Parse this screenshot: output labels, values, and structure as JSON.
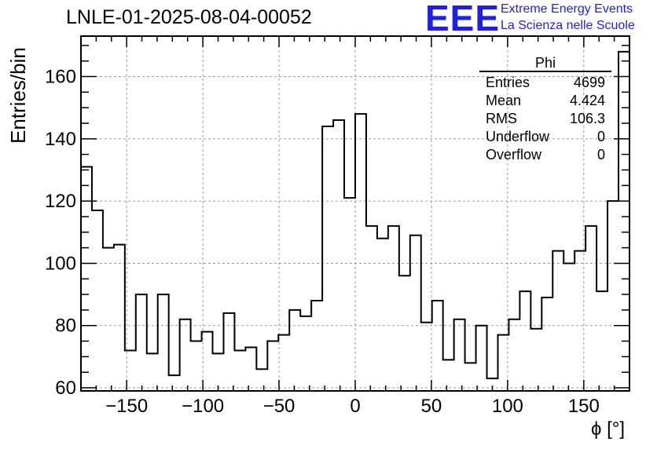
{
  "header": {
    "title": "LNLE-01-2025-08-04-00052",
    "logo_text": "EEE",
    "tagline_1": "Extreme Energy Events",
    "tagline_2": "La Scienza nelle Scuole",
    "brand_color": "#1f1fe6"
  },
  "stats_box": {
    "name": "Phi",
    "rows": [
      {
        "label": "Entries",
        "value": "4699"
      },
      {
        "label": "Mean",
        "value": "4.424"
      },
      {
        "label": "RMS",
        "value": "106.3"
      },
      {
        "label": "Underflow",
        "value": "0"
      },
      {
        "label": "Overflow",
        "value": "0"
      }
    ]
  },
  "chart_data": {
    "type": "histogram",
    "title": "LNLE-01-2025-08-04-00052",
    "xlabel": "ϕ [°]",
    "ylabel": "Entries/bin",
    "xlim": [
      -180,
      180
    ],
    "ylim": [
      59,
      173
    ],
    "bin_edges_start": -180,
    "bin_width": 7.2,
    "values": [
      131,
      117,
      105,
      106,
      72,
      90,
      71,
      90,
      64,
      82,
      75,
      78,
      71,
      84,
      72,
      73,
      66,
      75,
      77,
      85,
      83,
      88,
      144,
      146,
      121,
      148,
      112,
      108,
      112,
      96,
      109,
      81,
      88,
      69,
      82,
      68,
      80,
      63,
      77,
      82,
      91,
      79,
      89,
      104,
      100,
      104,
      112,
      91,
      120,
      168
    ],
    "xticks": [
      -150,
      -100,
      -50,
      0,
      50,
      100,
      150
    ],
    "xtick_labels": [
      "−150",
      "−100",
      "−50",
      "0",
      "50",
      "100",
      "150"
    ],
    "yticks": [
      60,
      80,
      100,
      120,
      140,
      160
    ],
    "ytick_labels": [
      "60",
      "80",
      "100",
      "120",
      "140",
      "160"
    ],
    "grid": true,
    "line_color": "#000000"
  }
}
